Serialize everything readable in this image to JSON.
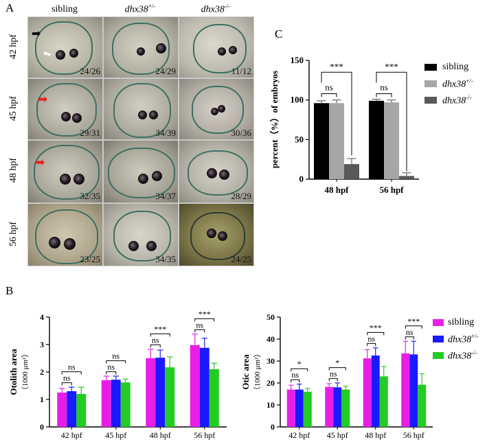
{
  "panel_a": {
    "letter": "A",
    "columns": [
      "sibling",
      "dhx38",
      "dhx38"
    ],
    "column_sup": [
      "",
      "+/-",
      "-/-"
    ],
    "rows": [
      "42 hpf",
      "45 hpf",
      "48 hpf",
      "56 hpf"
    ],
    "ratios": [
      [
        "24/26",
        "24/29",
        "11/12"
      ],
      [
        "29/31",
        "34/39",
        "30/36"
      ],
      [
        "32/35",
        "34/37",
        "28/29"
      ],
      [
        "23/25",
        "34/35",
        "24/25"
      ]
    ],
    "arrow_colors": {
      "black": "#000000",
      "white": "#ffffff",
      "red": "#e8201c"
    }
  },
  "panel_b": {
    "letter": "B"
  },
  "panel_c": {
    "letter": "C"
  },
  "legend_c": {
    "labels": [
      "sibling",
      "dhx38",
      "dhx38"
    ],
    "sup": [
      "",
      "+/-",
      "-/-"
    ],
    "colors": [
      "#000000",
      "#a6a6a6",
      "#595959"
    ]
  },
  "legend_b": {
    "labels": [
      "sibling",
      "dhx38",
      "dhx38"
    ],
    "sup": [
      "",
      "+/-",
      "-/-"
    ],
    "colors": [
      "#e81ee8",
      "#1a1aff",
      "#22cc22"
    ]
  },
  "chart_data": [
    {
      "type": "bar",
      "panel": "C",
      "ylabel": "percent（%）of embryos",
      "categories": [
        "48 hpf",
        "56 hpf"
      ],
      "ylim": [
        0,
        150
      ],
      "yticks": [
        0,
        50,
        100,
        150
      ],
      "series": [
        {
          "name": "sibling",
          "values": [
            96,
            99
          ],
          "errors": [
            3,
            2
          ],
          "color": "#000000"
        },
        {
          "name": "dhx38+/-",
          "values": [
            96,
            97
          ],
          "errors": [
            4,
            3
          ],
          "color": "#a6a6a6"
        },
        {
          "name": "dhx38-/-",
          "values": [
            19,
            4
          ],
          "errors": [
            7,
            4
          ],
          "color": "#595959"
        }
      ],
      "annotations": [
        {
          "category": "48 hpf",
          "text": "ns",
          "between": [
            "sibling",
            "dhx38+/-"
          ]
        },
        {
          "category": "48 hpf",
          "text": "***",
          "between": [
            "sibling",
            "dhx38-/-"
          ]
        },
        {
          "category": "56 hpf",
          "text": "ns",
          "between": [
            "sibling",
            "dhx38+/-"
          ]
        },
        {
          "category": "56 hpf",
          "text": "***",
          "between": [
            "sibling",
            "dhx38-/-"
          ]
        }
      ]
    },
    {
      "type": "bar",
      "panel": "B-left",
      "ylabel": "Otolith area",
      "yunit": "（1000 μm²）",
      "categories": [
        "42 hpf",
        "45 hpf",
        "48 hpf",
        "56 hpf"
      ],
      "ylim": [
        0,
        4
      ],
      "yticks": [
        0,
        1,
        2,
        3,
        4
      ],
      "series": [
        {
          "name": "sibling",
          "values": [
            1.25,
            1.7,
            2.5,
            2.98
          ],
          "errors": [
            0.15,
            0.15,
            0.33,
            0.4
          ],
          "color": "#e81ee8"
        },
        {
          "name": "dhx38+/-",
          "values": [
            1.3,
            1.72,
            2.52,
            2.88
          ],
          "errors": [
            0.15,
            0.13,
            0.28,
            0.35
          ],
          "color": "#1a1aff"
        },
        {
          "name": "dhx38-/-",
          "values": [
            1.2,
            1.62,
            2.17,
            2.1
          ],
          "errors": [
            0.25,
            0.12,
            0.38,
            0.22
          ],
          "color": "#22cc22"
        }
      ],
      "annotations": [
        {
          "category": "42 hpf",
          "inner": "ns",
          "outer": "ns"
        },
        {
          "category": "45 hpf",
          "inner": "ns",
          "outer": "ns"
        },
        {
          "category": "48 hpf",
          "inner": "ns",
          "outer": "***"
        },
        {
          "category": "56 hpf",
          "inner": "ns",
          "outer": "***"
        }
      ]
    },
    {
      "type": "bar",
      "panel": "B-right",
      "ylabel": "Otic area",
      "yunit": "（1000 μm²）",
      "categories": [
        "42 hpf",
        "45 hpf",
        "48 hpf",
        "56 hpf"
      ],
      "ylim": [
        0,
        50
      ],
      "yticks": [
        0,
        10,
        20,
        30,
        40,
        50
      ],
      "series": [
        {
          "name": "sibling",
          "values": [
            17,
            18.2,
            31.2,
            33.5
          ],
          "errors": [
            2,
            1.5,
            4,
            5.5
          ],
          "color": "#e81ee8"
        },
        {
          "name": "dhx38+/-",
          "values": [
            17,
            18,
            32.5,
            33
          ],
          "errors": [
            2.5,
            2,
            3.5,
            6
          ],
          "color": "#1a1aff"
        },
        {
          "name": "dhx38-/-",
          "values": [
            16,
            17,
            23,
            19.2
          ],
          "errors": [
            1.5,
            1.5,
            4.5,
            5
          ],
          "color": "#22cc22"
        }
      ],
      "annotations": [
        {
          "category": "42 hpf",
          "inner": "ns",
          "outer": "*"
        },
        {
          "category": "45 hpf",
          "inner": "ns",
          "outer": "*"
        },
        {
          "category": "48 hpf",
          "inner": "ns",
          "outer": "***"
        },
        {
          "category": "56 hpf",
          "inner": "ns",
          "outer": "***"
        }
      ]
    }
  ]
}
